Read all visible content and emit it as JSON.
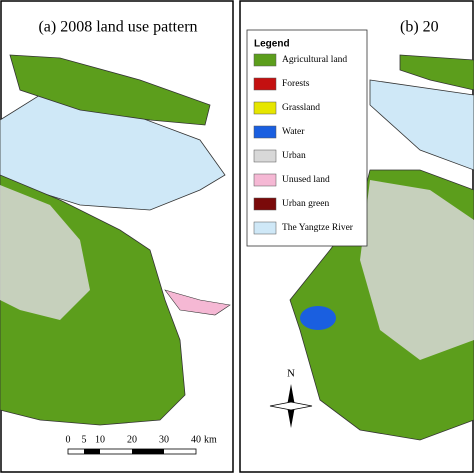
{
  "panels": [
    {
      "title": "(a) 2008 land use pattern"
    },
    {
      "title": "(b) 20"
    }
  ],
  "legend": {
    "title": "Legend",
    "items": [
      {
        "label": "Agricultural land",
        "color": "#5c9e1c"
      },
      {
        "label": "Forests",
        "color": "#c41010"
      },
      {
        "label": "Grassland",
        "color": "#e6e600"
      },
      {
        "label": "Water",
        "color": "#1a5fe0"
      },
      {
        "label": "Urban",
        "color": "#d8d8d8"
      },
      {
        "label": "Unused land",
        "color": "#f5b8d4"
      },
      {
        "label": "Urban green",
        "color": "#7a0a0a"
      },
      {
        "label": "The Yangtze River",
        "color": "#cfe8f7"
      }
    ]
  },
  "scale_bar": {
    "labels": [
      0,
      5,
      10,
      20,
      30,
      40
    ],
    "unit": "km"
  },
  "north_arrow": {
    "label": "N"
  }
}
